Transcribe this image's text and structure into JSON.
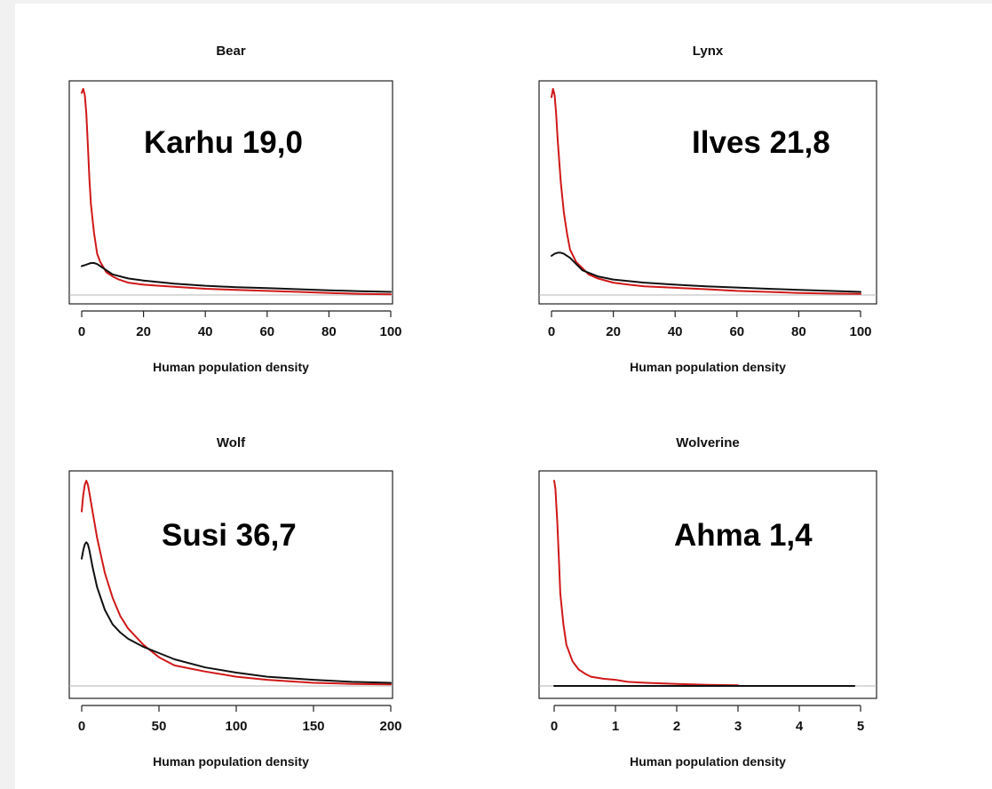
{
  "chart_data": [
    {
      "type": "line",
      "title": "Bear",
      "xlabel": "Human population density",
      "ylabel": "",
      "annotation": "Karhu 19,0",
      "xlim": [
        0,
        100
      ],
      "ylim": [
        0,
        1
      ],
      "xticks": [
        0,
        20,
        40,
        60,
        80,
        100
      ],
      "tick_labels": [
        "0",
        "20",
        "40",
        "60",
        "80",
        "100"
      ],
      "series": [
        {
          "color": "#d01818",
          "x": [
            0,
            0.5,
            1,
            1.5,
            2,
            2.5,
            3,
            4,
            5,
            6,
            8,
            10,
            12,
            15,
            20,
            25,
            30,
            40,
            50,
            60,
            70,
            80,
            90,
            100
          ],
          "y": [
            0.98,
            1.0,
            0.97,
            0.88,
            0.72,
            0.56,
            0.44,
            0.3,
            0.2,
            0.16,
            0.11,
            0.09,
            0.075,
            0.06,
            0.05,
            0.045,
            0.04,
            0.03,
            0.025,
            0.02,
            0.015,
            0.01,
            0.005,
            0.003
          ]
        },
        {
          "color": "#111111",
          "x": [
            0,
            1,
            2,
            3,
            4,
            5,
            6,
            8,
            10,
            15,
            20,
            30,
            40,
            50,
            60,
            70,
            80,
            90,
            100
          ],
          "y": [
            0.14,
            0.145,
            0.15,
            0.155,
            0.155,
            0.15,
            0.14,
            0.12,
            0.1,
            0.08,
            0.07,
            0.055,
            0.045,
            0.038,
            0.033,
            0.028,
            0.023,
            0.018,
            0.015
          ]
        }
      ]
    },
    {
      "type": "line",
      "title": "Lynx",
      "xlabel": "Human population density",
      "ylabel": "",
      "annotation": "Ilves 21,8",
      "xlim": [
        0,
        100
      ],
      "ylim": [
        0,
        1
      ],
      "xticks": [
        0,
        20,
        40,
        60,
        80,
        100
      ],
      "tick_labels": [
        "0",
        "20",
        "40",
        "60",
        "80",
        "100"
      ],
      "series": [
        {
          "color": "#d01818",
          "x": [
            0,
            0.5,
            1,
            1.5,
            2,
            3,
            4,
            5,
            6,
            8,
            10,
            12,
            15,
            20,
            25,
            30,
            40,
            50,
            60,
            70,
            80,
            90,
            100
          ],
          "y": [
            0.96,
            1.0,
            0.97,
            0.88,
            0.75,
            0.55,
            0.4,
            0.3,
            0.22,
            0.16,
            0.13,
            0.1,
            0.08,
            0.06,
            0.05,
            0.042,
            0.035,
            0.028,
            0.02,
            0.015,
            0.01,
            0.007,
            0.005
          ]
        },
        {
          "color": "#111111",
          "x": [
            0,
            1,
            2,
            3,
            4,
            5,
            6,
            8,
            10,
            15,
            20,
            30,
            40,
            50,
            60,
            70,
            80,
            90,
            100
          ],
          "y": [
            0.19,
            0.2,
            0.205,
            0.205,
            0.2,
            0.19,
            0.18,
            0.15,
            0.12,
            0.09,
            0.075,
            0.06,
            0.05,
            0.042,
            0.036,
            0.03,
            0.025,
            0.02,
            0.015
          ]
        }
      ]
    },
    {
      "type": "line",
      "title": "Wolf",
      "xlabel": "Human population density",
      "ylabel": "",
      "annotation": "Susi 36,7",
      "xlim": [
        0,
        200
      ],
      "ylim": [
        0,
        1
      ],
      "xticks": [
        0,
        50,
        100,
        150,
        200
      ],
      "tick_labels": [
        "0",
        "50",
        "100",
        "150",
        "200"
      ],
      "series": [
        {
          "color": "#d01818",
          "x": [
            0,
            1,
            2,
            3,
            4,
            5,
            7,
            10,
            15,
            20,
            25,
            30,
            40,
            50,
            60,
            70,
            80,
            100,
            120,
            150,
            175,
            200
          ],
          "y": [
            0.85,
            0.93,
            0.98,
            1.0,
            0.98,
            0.94,
            0.85,
            0.72,
            0.55,
            0.43,
            0.34,
            0.28,
            0.2,
            0.14,
            0.1,
            0.085,
            0.07,
            0.045,
            0.03,
            0.015,
            0.01,
            0.008
          ]
        },
        {
          "color": "#111111",
          "x": [
            0,
            1,
            2,
            3,
            4,
            5,
            7,
            10,
            15,
            20,
            25,
            30,
            40,
            50,
            60,
            80,
            100,
            120,
            150,
            175,
            200
          ],
          "y": [
            0.62,
            0.66,
            0.69,
            0.7,
            0.69,
            0.66,
            0.58,
            0.48,
            0.37,
            0.3,
            0.26,
            0.23,
            0.19,
            0.16,
            0.13,
            0.09,
            0.065,
            0.045,
            0.03,
            0.02,
            0.015
          ]
        }
      ]
    },
    {
      "type": "line",
      "title": "Wolverine",
      "xlabel": "Human population density",
      "ylabel": "",
      "annotation": "Ahma 1,4",
      "xlim": [
        0,
        5
      ],
      "ylim": [
        0,
        1
      ],
      "xticks": [
        0,
        1,
        2,
        3,
        4,
        5
      ],
      "tick_labels": [
        "0",
        "1",
        "2",
        "3",
        "4",
        "5"
      ],
      "series": [
        {
          "color": "#d01818",
          "x": [
            0,
            0.02,
            0.05,
            0.08,
            0.1,
            0.15,
            0.2,
            0.3,
            0.4,
            0.5,
            0.6,
            0.8,
            1.0,
            1.2,
            1.5,
            2.0,
            2.5,
            3.0
          ],
          "y": [
            1.0,
            0.96,
            0.8,
            0.6,
            0.45,
            0.3,
            0.2,
            0.12,
            0.08,
            0.06,
            0.045,
            0.035,
            0.03,
            0.02,
            0.015,
            0.01,
            0.005,
            0.003
          ]
        },
        {
          "color": "#111111",
          "x": [
            0,
            1,
            2,
            3,
            4,
            4.9
          ],
          "y": [
            0.0,
            0.0,
            0.0,
            0.0,
            0.0,
            0.0
          ]
        }
      ]
    }
  ]
}
